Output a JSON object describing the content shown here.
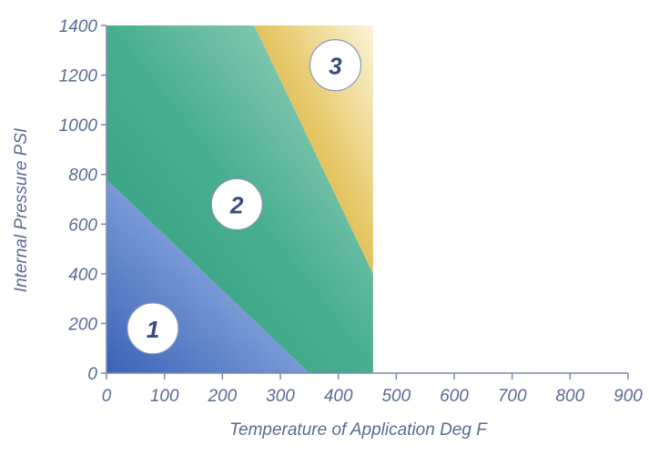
{
  "chart_data": {
    "type": "area",
    "title": "",
    "xlabel": "Temperature of Application Deg F",
    "ylabel": "Internal Pressure PSI",
    "xlim": [
      0,
      900
    ],
    "ylim": [
      0,
      1400
    ],
    "x_ticks": [
      0,
      100,
      200,
      300,
      400,
      500,
      600,
      700,
      800,
      900
    ],
    "y_ticks": [
      0,
      200,
      400,
      600,
      800,
      1000,
      1200,
      1400
    ],
    "grid": false,
    "regions": [
      {
        "name": "1",
        "color": "#4d77c4",
        "polygon": [
          [
            0,
            0
          ],
          [
            350,
            0
          ],
          [
            0,
            780
          ]
        ],
        "label_at": [
          80,
          180
        ]
      },
      {
        "name": "2",
        "color": "#3faa8a",
        "polygon": [
          [
            0,
            780
          ],
          [
            350,
            0
          ],
          [
            460,
            0
          ],
          [
            460,
            400
          ],
          [
            255,
            1400
          ],
          [
            0,
            1400
          ]
        ],
        "label_at": [
          225,
          680
        ]
      },
      {
        "name": "3",
        "color": "#d9b13a",
        "polygon": [
          [
            255,
            1400
          ],
          [
            460,
            1400
          ],
          [
            460,
            400
          ]
        ],
        "label_at": [
          395,
          1240
        ]
      }
    ]
  }
}
